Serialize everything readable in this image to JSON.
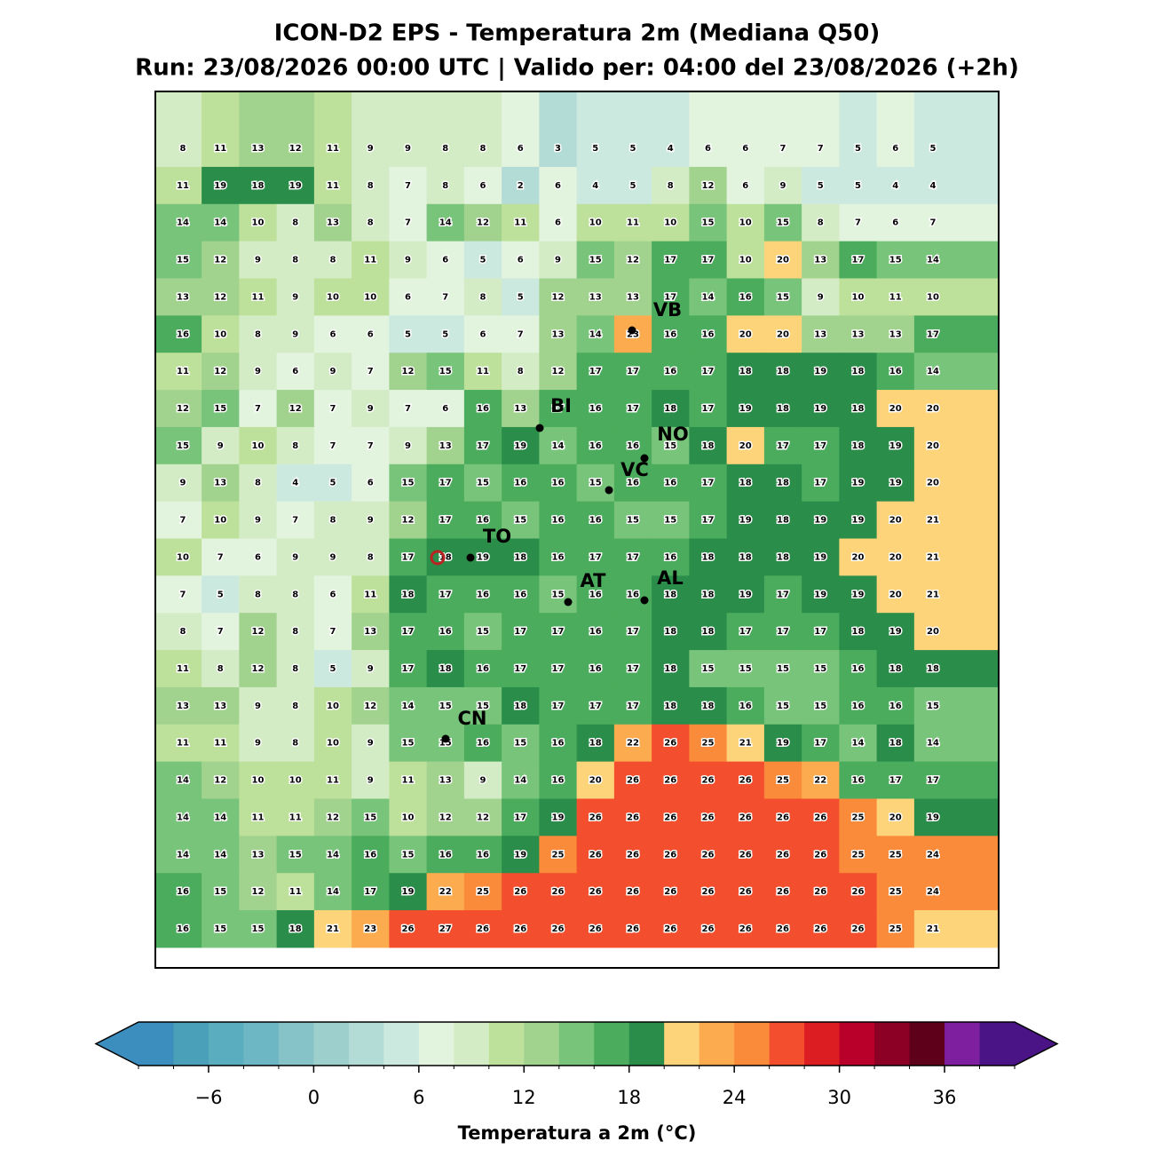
{
  "title": "ICON-D2 EPS - Temperatura 2m (Mediana Q50)",
  "subtitle": "Run: 23/08/2026 00:00 UTC | Valido per: 04:00 del 23/08/2026 (+2h)",
  "map": {
    "values": [
      [
        8,
        11,
        13,
        12,
        11,
        9,
        9,
        8,
        8,
        6,
        3,
        5,
        5,
        4,
        6,
        6,
        7,
        7,
        5,
        6,
        5
      ],
      [
        11,
        19,
        18,
        19,
        11,
        8,
        7,
        8,
        6,
        2,
        6,
        4,
        5,
        8,
        12,
        6,
        9,
        5,
        5,
        4,
        4
      ],
      [
        14,
        14,
        10,
        8,
        13,
        8,
        7,
        14,
        12,
        11,
        6,
        10,
        11,
        10,
        15,
        10,
        15,
        8,
        7,
        6,
        7
      ],
      [
        15,
        12,
        9,
        8,
        8,
        11,
        9,
        6,
        5,
        6,
        9,
        15,
        12,
        17,
        17,
        10,
        20,
        13,
        17,
        15,
        14
      ],
      [
        13,
        12,
        11,
        9,
        10,
        10,
        6,
        7,
        8,
        5,
        12,
        13,
        13,
        17,
        14,
        16,
        15,
        9,
        10,
        11,
        10
      ],
      [
        16,
        10,
        8,
        9,
        6,
        6,
        5,
        5,
        6,
        7,
        13,
        14,
        23,
        16,
        16,
        20,
        20,
        13,
        13,
        13,
        17
      ],
      [
        11,
        12,
        9,
        6,
        9,
        7,
        12,
        15,
        11,
        8,
        12,
        17,
        17,
        16,
        17,
        18,
        18,
        19,
        18,
        16,
        14
      ],
      [
        12,
        15,
        7,
        12,
        7,
        9,
        7,
        6,
        16,
        13,
        17,
        16,
        17,
        18,
        17,
        19,
        18,
        19,
        18,
        20,
        20
      ],
      [
        15,
        9,
        10,
        8,
        7,
        7,
        9,
        13,
        17,
        19,
        14,
        16,
        16,
        15,
        18,
        20,
        17,
        17,
        18,
        19,
        20
      ],
      [
        9,
        13,
        8,
        4,
        5,
        6,
        15,
        17,
        15,
        16,
        16,
        15,
        16,
        16,
        17,
        18,
        18,
        17,
        19,
        19,
        20
      ],
      [
        7,
        10,
        9,
        7,
        8,
        9,
        12,
        17,
        16,
        15,
        16,
        16,
        15,
        15,
        17,
        19,
        18,
        19,
        19,
        20,
        21
      ],
      [
        10,
        7,
        6,
        9,
        9,
        8,
        17,
        18,
        19,
        18,
        16,
        17,
        17,
        16,
        18,
        18,
        18,
        19,
        20,
        20,
        21
      ],
      [
        7,
        5,
        8,
        8,
        6,
        11,
        18,
        17,
        16,
        16,
        15,
        16,
        16,
        18,
        18,
        19,
        17,
        19,
        19,
        20,
        21
      ],
      [
        8,
        7,
        12,
        8,
        7,
        13,
        17,
        16,
        15,
        17,
        17,
        16,
        17,
        18,
        18,
        17,
        17,
        17,
        18,
        19,
        20
      ],
      [
        11,
        8,
        12,
        8,
        5,
        9,
        17,
        18,
        16,
        17,
        17,
        16,
        17,
        18,
        15,
        15,
        15,
        15,
        16,
        18,
        18
      ],
      [
        13,
        13,
        9,
        8,
        10,
        12,
        14,
        15,
        15,
        18,
        17,
        17,
        17,
        18,
        18,
        16,
        15,
        15,
        16,
        16,
        15
      ],
      [
        11,
        11,
        9,
        8,
        10,
        9,
        15,
        15,
        16,
        15,
        16,
        18,
        22,
        26,
        25,
        21,
        19,
        17,
        14,
        18,
        14
      ],
      [
        14,
        12,
        10,
        10,
        11,
        9,
        11,
        13,
        9,
        14,
        16,
        20,
        26,
        26,
        26,
        26,
        25,
        22,
        16,
        17,
        17
      ],
      [
        14,
        14,
        11,
        11,
        12,
        15,
        10,
        12,
        12,
        17,
        19,
        26,
        26,
        26,
        26,
        26,
        26,
        26,
        25,
        20,
        19
      ],
      [
        14,
        14,
        13,
        15,
        14,
        16,
        15,
        16,
        16,
        19,
        25,
        26,
        26,
        26,
        26,
        26,
        26,
        26,
        25,
        25,
        24
      ],
      [
        16,
        15,
        12,
        11,
        14,
        17,
        19,
        22,
        25,
        26,
        26,
        26,
        26,
        26,
        26,
        26,
        26,
        26,
        26,
        25,
        24
      ],
      [
        16,
        15,
        15,
        18,
        21,
        23,
        26,
        27,
        26,
        26,
        26,
        26,
        26,
        26,
        26,
        26,
        26,
        26,
        26,
        25,
        21
      ]
    ],
    "cities": [
      "VB",
      "BI",
      "NO",
      "VC",
      "TO",
      "AT",
      "AL",
      "CN"
    ]
  },
  "colorbar": {
    "label": "Temperatura a 2m (°C)",
    "xlim": [
      -10,
      40
    ],
    "xticks": [
      {
        "value": -6,
        "label": "−6"
      },
      0,
      6,
      12,
      18,
      24,
      30,
      36
    ],
    "extend": "both",
    "colors": [
      "#3c8ebf",
      "#4aa0b8",
      "#5aacbf",
      "#6db7c4",
      "#86c3c8",
      "#9dcfcd",
      "#b4dcd6",
      "#cce9e0",
      "#e2f3de",
      "#d4ecc6",
      "#bde19a",
      "#a2d38e",
      "#77c47a",
      "#4bac5d",
      "#2a8e4a",
      "#fed47a",
      "#fcab4f",
      "#f98b3a",
      "#f34f2e",
      "#dc1d22",
      "#b8002a",
      "#8b0024",
      "#5e0019",
      "#7e1fa0",
      "#4a1486"
    ]
  }
}
